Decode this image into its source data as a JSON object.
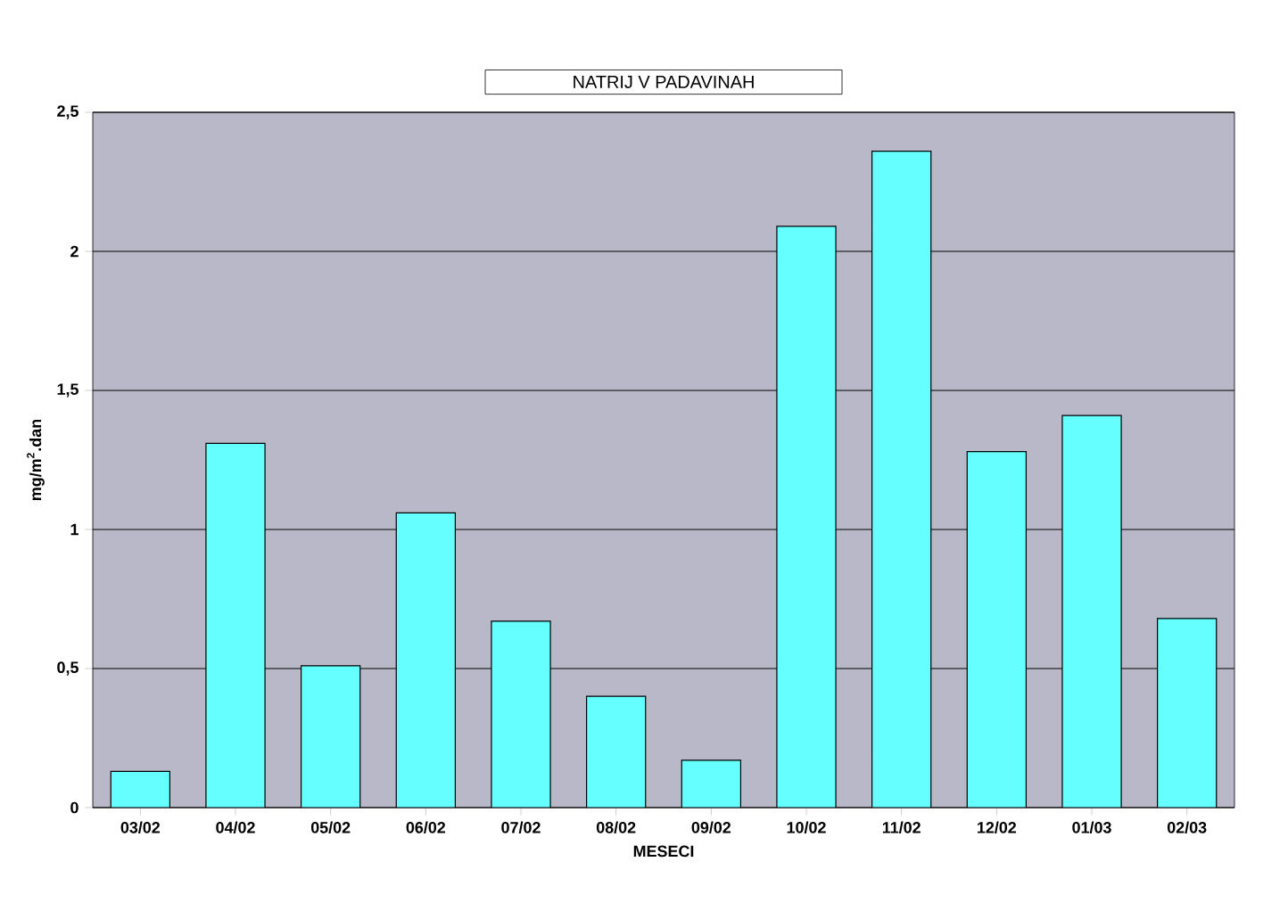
{
  "chart_data": {
    "type": "bar",
    "title": "NATRIJ V PADAVINAH",
    "xlabel": "MESECI",
    "ylabel": "mg/m$^{2}$.dan",
    "categories": [
      "03/02",
      "04/02",
      "05/02",
      "06/02",
      "07/02",
      "08/02",
      "09/02",
      "10/02",
      "11/02",
      "12/02",
      "01/03",
      "02/03"
    ],
    "values": [
      0.13,
      1.31,
      0.51,
      1.06,
      0.67,
      0.4,
      0.17,
      2.09,
      2.36,
      1.28,
      1.41,
      0.68
    ],
    "color": "#66ffff",
    "ylim": [
      0,
      2.5
    ],
    "yticks": [
      0,
      {
        "value": 0.5,
        "label": "0,5"
      },
      1,
      {
        "value": 1.5,
        "label": "1,5"
      },
      2,
      {
        "value": 2.5,
        "label": "2,5"
      }
    ],
    "grid": "y"
  }
}
